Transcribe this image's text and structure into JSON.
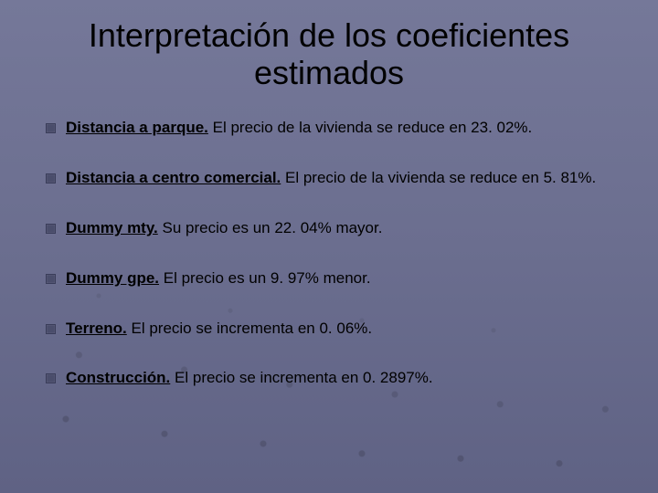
{
  "slide": {
    "background_color": "#6b6e8f",
    "title": "Interpretación de los coeficientes estimados",
    "title_fontsize": 36,
    "title_color": "#000000",
    "bullet_color": "#4a4d6b",
    "text_color": "#000000",
    "body_fontsize": 17,
    "items": [
      {
        "label": "Distancia a parque.",
        "desc": " El precio de la vivienda se reduce en 23. 02%."
      },
      {
        "label": "Distancia a centro comercial.",
        "desc": " El precio de la vivienda se reduce en 5. 81%."
      },
      {
        "label": "Dummy mty.",
        "desc": " Su precio es un 22. 04% mayor."
      },
      {
        "label": "Dummy gpe.",
        "desc": " El precio es un 9. 97% menor."
      },
      {
        "label": "Terreno.",
        "desc": " El precio se incrementa en 0. 06%."
      },
      {
        "label": "Construcción.",
        "desc": " El precio se incrementa en 0. 2897%."
      }
    ]
  }
}
